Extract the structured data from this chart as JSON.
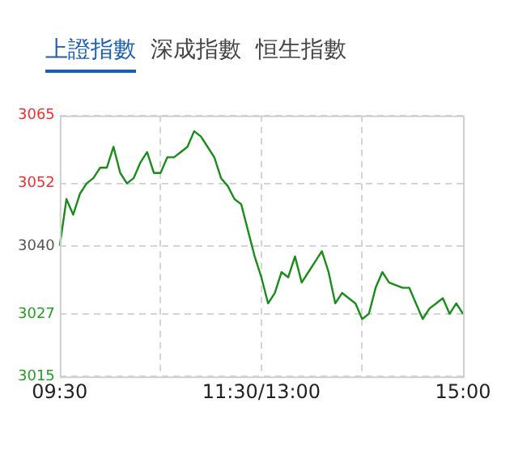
{
  "chart_data": {
    "type": "line",
    "title": "上證指數",
    "annotations": [
      "深成指數",
      "恒生指數"
    ],
    "categories": [
      "09:30",
      null,
      null,
      null,
      null,
      null,
      null,
      null,
      null,
      null,
      null,
      null,
      null,
      null,
      null,
      null,
      null,
      null,
      null,
      null,
      null,
      null,
      null,
      null,
      null,
      null,
      null,
      null,
      null,
      null,
      "11:30/13:00",
      null,
      null,
      null,
      null,
      null,
      null,
      null,
      null,
      null,
      null,
      null,
      null,
      null,
      null,
      null,
      null,
      null,
      null,
      null,
      null,
      null,
      null,
      null,
      null,
      null,
      null,
      null,
      null,
      null,
      "15:00"
    ],
    "series": [
      {
        "color": "#1a8c1a",
        "values": [
          3040,
          3049,
          3046,
          3050,
          3052,
          3053,
          3055,
          3055,
          3059,
          3054,
          3052,
          3053,
          3056,
          3058,
          3054,
          3054,
          3057,
          3057,
          3058,
          3059,
          3062,
          3061,
          3059,
          3057,
          3053,
          3051.5,
          3049,
          3048,
          3043,
          3038,
          3034,
          3029,
          3031,
          3035,
          3034,
          3038,
          3033,
          3035,
          3037,
          3039,
          3035,
          3029,
          3031,
          3030,
          3029,
          3026,
          3027,
          3032,
          3035,
          3033,
          3032.5,
          3032,
          3032,
          3029,
          3026,
          3028,
          3029,
          3030,
          3027,
          3029,
          3027
        ]
      }
    ],
    "ylim": [
      3015,
      3065
    ],
    "yticks": [
      3015,
      3027,
      3040,
      3052,
      3065
    ],
    "grid": true,
    "marker": "none",
    "line_style": "solid",
    "legend": false
  }
}
